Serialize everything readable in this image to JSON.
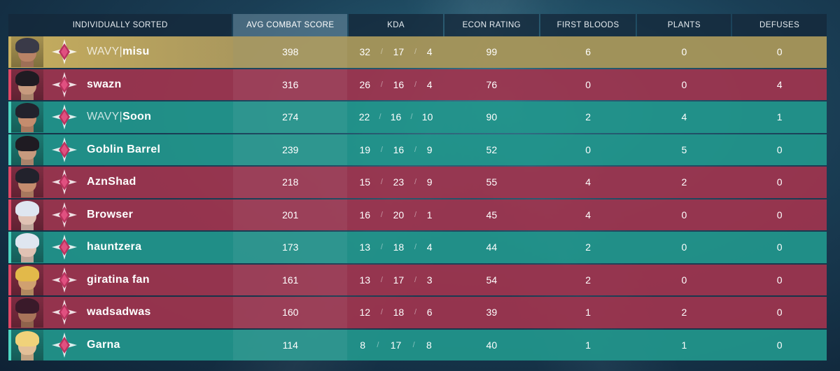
{
  "header": {
    "player_col": "INDIVIDUALLY SORTED",
    "acs": "AVG COMBAT SCORE",
    "kda": "KDA",
    "econ": "ECON RATING",
    "first_bloods": "FIRST BLOODS",
    "plants": "PLANTS",
    "defuses": "DEFUSES"
  },
  "kda_separator": "/",
  "colors": {
    "red_team": "#a0344e",
    "teal_team": "#2296a0",
    "highlight": "#a8965a"
  },
  "players": [
    {
      "tag": "WAVY",
      "name": "misu",
      "team": "gold",
      "acs": "398",
      "k": "32",
      "d": "17",
      "a": "4",
      "econ": "99",
      "fb": "6",
      "plants": "0",
      "defuses": "0",
      "skin": "#b98366",
      "hair": "#3a3a48"
    },
    {
      "tag": "",
      "name": "swazn",
      "team": "red",
      "acs": "316",
      "k": "26",
      "d": "16",
      "a": "4",
      "econ": "76",
      "fb": "0",
      "plants": "0",
      "defuses": "4",
      "skin": "#c79a7e",
      "hair": "#1f1b22"
    },
    {
      "tag": "WAVY",
      "name": "Soon",
      "team": "teal",
      "acs": "274",
      "k": "22",
      "d": "16",
      "a": "10",
      "econ": "90",
      "fb": "2",
      "plants": "4",
      "defuses": "1",
      "skin": "#c48c6e",
      "hair": "#22222c"
    },
    {
      "tag": "",
      "name": "Goblin Barrel",
      "team": "teal",
      "acs": "239",
      "k": "19",
      "d": "16",
      "a": "9",
      "econ": "52",
      "fb": "0",
      "plants": "5",
      "defuses": "0",
      "skin": "#c79a7e",
      "hair": "#1f1b22"
    },
    {
      "tag": "",
      "name": "AznShad",
      "team": "red",
      "acs": "218",
      "k": "15",
      "d": "23",
      "a": "9",
      "econ": "55",
      "fb": "4",
      "plants": "2",
      "defuses": "0",
      "skin": "#c48c6e",
      "hair": "#22222c"
    },
    {
      "tag": "",
      "name": "Browser",
      "team": "red",
      "acs": "201",
      "k": "16",
      "d": "20",
      "a": "1",
      "econ": "45",
      "fb": "4",
      "plants": "0",
      "defuses": "0",
      "skin": "#e0c2b4",
      "hair": "#dfe6f0"
    },
    {
      "tag": "",
      "name": "hauntzera",
      "team": "teal",
      "acs": "173",
      "k": "13",
      "d": "18",
      "a": "4",
      "econ": "44",
      "fb": "2",
      "plants": "0",
      "defuses": "0",
      "skin": "#e0c2b4",
      "hair": "#dfe6f0"
    },
    {
      "tag": "",
      "name": "giratina fan",
      "team": "red",
      "acs": "161",
      "k": "13",
      "d": "17",
      "a": "3",
      "econ": "54",
      "fb": "2",
      "plants": "0",
      "defuses": "0",
      "skin": "#d0a070",
      "hair": "#e2b94a"
    },
    {
      "tag": "",
      "name": "wadsadwas",
      "team": "red",
      "acs": "160",
      "k": "12",
      "d": "18",
      "a": "6",
      "econ": "39",
      "fb": "1",
      "plants": "2",
      "defuses": "0",
      "skin": "#a8745a",
      "hair": "#3a1a2a"
    },
    {
      "tag": "",
      "name": "Garna",
      "team": "teal",
      "acs": "114",
      "k": "8",
      "d": "17",
      "a": "8",
      "econ": "40",
      "fb": "1",
      "plants": "1",
      "defuses": "0",
      "skin": "#e2bf98",
      "hair": "#f0d27a"
    }
  ]
}
